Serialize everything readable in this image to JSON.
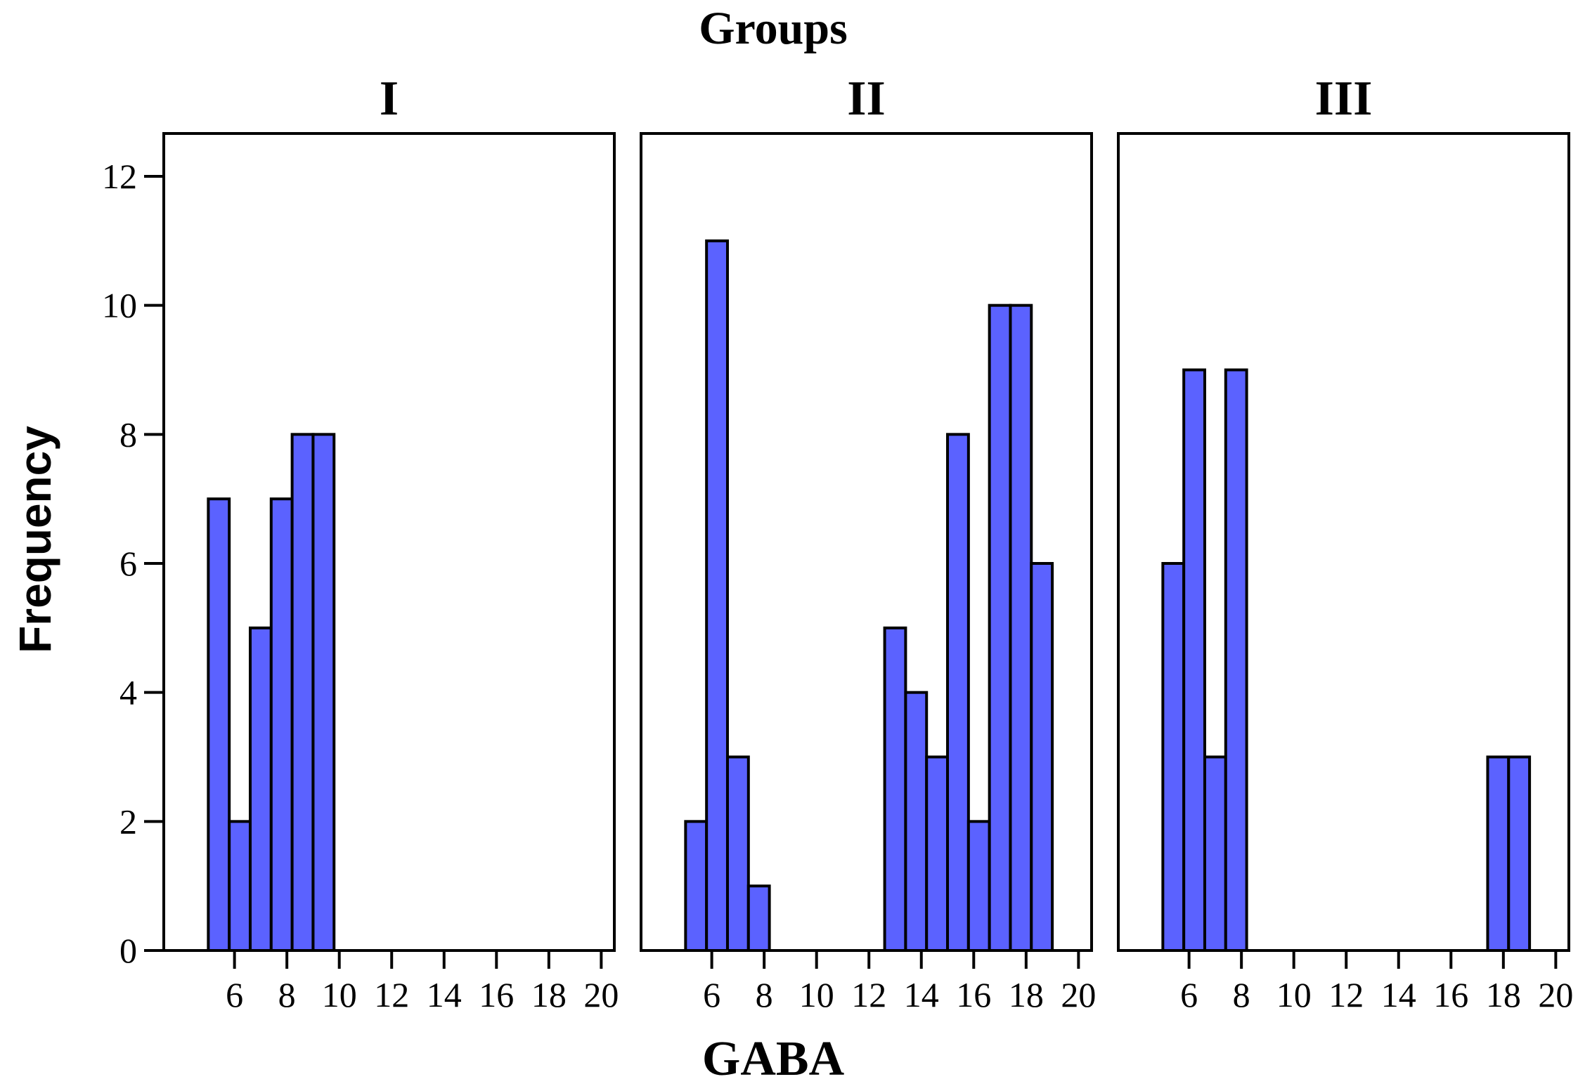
{
  "chart_data": {
    "type": "bar",
    "subtype": "histogram-faceted",
    "title": "Groups",
    "xlabel": "GABA",
    "ylabel": "Frequency",
    "bar_color": "#5b62ff",
    "bin_width": 0.8,
    "xlim": [
      3.3,
      20.5
    ],
    "ylim": [
      0,
      12.6
    ],
    "xticks": [
      6,
      8,
      10,
      12,
      14,
      16,
      18,
      20
    ],
    "yticks": [
      0,
      2,
      4,
      6,
      8,
      10,
      12
    ],
    "panels": [
      {
        "name": "I",
        "bins": [
          {
            "start": 5.0,
            "count": 7
          },
          {
            "start": 5.8,
            "count": 2
          },
          {
            "start": 6.6,
            "count": 5
          },
          {
            "start": 7.4,
            "count": 7
          },
          {
            "start": 8.2,
            "count": 8
          },
          {
            "start": 9.0,
            "count": 8
          }
        ]
      },
      {
        "name": "II",
        "bins": [
          {
            "start": 5.0,
            "count": 2
          },
          {
            "start": 5.8,
            "count": 11
          },
          {
            "start": 6.6,
            "count": 3
          },
          {
            "start": 7.4,
            "count": 1
          },
          {
            "start": 12.6,
            "count": 5
          },
          {
            "start": 13.4,
            "count": 4
          },
          {
            "start": 14.2,
            "count": 3
          },
          {
            "start": 15.0,
            "count": 8
          },
          {
            "start": 15.8,
            "count": 2
          },
          {
            "start": 16.6,
            "count": 10
          },
          {
            "start": 17.4,
            "count": 10
          },
          {
            "start": 18.2,
            "count": 6
          }
        ]
      },
      {
        "name": "III",
        "bins": [
          {
            "start": 5.0,
            "count": 6
          },
          {
            "start": 5.8,
            "count": 9
          },
          {
            "start": 6.6,
            "count": 3
          },
          {
            "start": 7.4,
            "count": 9
          },
          {
            "start": 17.4,
            "count": 3
          },
          {
            "start": 18.2,
            "count": 3
          }
        ]
      }
    ]
  }
}
